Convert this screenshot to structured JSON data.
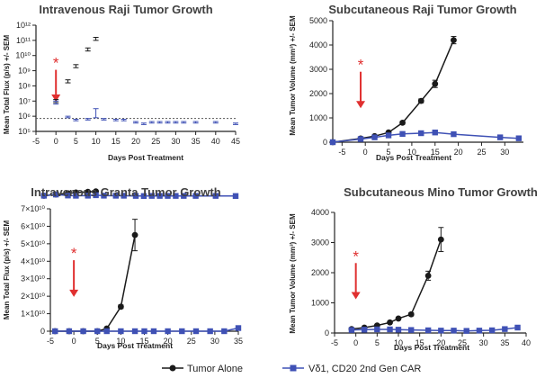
{
  "colors": {
    "tumor": "#1a1a1a",
    "car": "#3f51b5",
    "arrow": "#e03030",
    "axis": "#222222"
  },
  "legend": {
    "items": [
      {
        "label": "Tumor Alone",
        "marker": "circle",
        "color": "#1a1a1a"
      },
      {
        "label": "Vδ1, CD20 2nd Gen CAR",
        "marker": "square",
        "color": "#3f51b5"
      }
    ]
  },
  "chart_data": [
    {
      "id": "p1",
      "type": "line",
      "title": "Intravenous Raji Tumor Growth",
      "xlabel": "Days Post Treatment",
      "ylabel": "Mean Total Flux (p/s) +/- SEM",
      "y_scale": "log10",
      "xlim": [
        -5,
        45
      ],
      "ylim_exp": [
        5,
        12
      ],
      "x_ticks": [
        -5,
        0,
        5,
        10,
        15,
        20,
        25,
        30,
        35,
        40,
        45
      ],
      "y_ticks": [
        {
          "v": 5,
          "label": "10⁵"
        },
        {
          "v": 6,
          "label": "10⁶"
        },
        {
          "v": 7,
          "label": "10⁷"
        },
        {
          "v": 8,
          "label": "10⁸"
        },
        {
          "v": 9,
          "label": "10⁹"
        },
        {
          "v": 10,
          "label": "10¹⁰"
        },
        {
          "v": 11,
          "label": "10¹¹"
        },
        {
          "v": 12,
          "label": "10¹²"
        }
      ],
      "baseline": 5.85,
      "annotation": {
        "text": "*",
        "x": 0
      },
      "series": [
        {
          "name": "Tumor Alone",
          "marker": "circle",
          "x": [
            -3,
            0,
            3,
            5,
            8,
            10
          ],
          "y": [
            5.75,
            7.0,
            8.3,
            9.3,
            10.4,
            11.1
          ],
          "err": [
            0,
            0.1,
            0.1,
            0.1,
            0.1,
            0.1
          ]
        },
        {
          "name": "Vδ1, CD20 2nd Gen CAR",
          "marker": "square",
          "x": [
            -3,
            0,
            3,
            5,
            8,
            10,
            12,
            15,
            17,
            20,
            22,
            24,
            26,
            28,
            30,
            32,
            35,
            40,
            45
          ],
          "y": [
            5.75,
            6.9,
            5.95,
            5.75,
            5.8,
            6.2,
            5.8,
            5.75,
            5.75,
            5.6,
            5.5,
            5.6,
            5.6,
            5.6,
            5.6,
            5.6,
            5.6,
            5.6,
            5.5
          ],
          "err": [
            0,
            0.1,
            0.05,
            0.05,
            0.05,
            0.3,
            0.05,
            0.05,
            0.05,
            0.05,
            0.05,
            0.05,
            0.05,
            0.05,
            0.05,
            0.05,
            0.05,
            0.05,
            0.05
          ]
        }
      ]
    },
    {
      "id": "p2",
      "type": "line",
      "title": "Subcutaneous Raji Tumor Growth",
      "xlabel": "Days Post Treatment",
      "ylabel": "Mean Tumor Volume (mm³) +/- SEM",
      "xlim": [
        -7,
        34
      ],
      "ylim": [
        0,
        5000
      ],
      "x_ticks": [
        -5,
        0,
        5,
        10,
        15,
        20,
        25,
        30
      ],
      "y_ticks": [
        0,
        1000,
        2000,
        3000,
        4000,
        5000
      ],
      "annotation": {
        "text": "*",
        "x": -1
      },
      "series": [
        {
          "name": "Tumor Alone",
          "marker": "circle",
          "x": [
            -7,
            -1,
            2,
            5,
            8,
            12,
            15,
            19
          ],
          "y": [
            0,
            150,
            250,
            400,
            800,
            1700,
            2400,
            4200
          ],
          "err": [
            0,
            20,
            30,
            40,
            60,
            80,
            150,
            150
          ]
        },
        {
          "name": "Vδ1, CD20 2nd Gen CAR",
          "marker": "square",
          "x": [
            -7,
            -1,
            2,
            5,
            8,
            12,
            15,
            19,
            29,
            33
          ],
          "y": [
            0,
            130,
            200,
            280,
            340,
            370,
            400,
            330,
            200,
            160
          ],
          "err": [
            0,
            10,
            10,
            10,
            10,
            10,
            10,
            10,
            10,
            10
          ]
        }
      ]
    },
    {
      "id": "p3",
      "type": "line",
      "title": "Intravenous Granta Tumor Growth",
      "xlabel": "Days Post Treatment",
      "ylabel": "Mean Total Flux (p/s) +/- SEM",
      "xlim": [
        -5,
        35
      ],
      "ylim": [
        0,
        70000000000.0
      ],
      "x_ticks": [
        -5,
        0,
        5,
        10,
        15,
        20,
        25,
        30,
        35
      ],
      "y_ticks": [
        {
          "v": 0,
          "label": "0"
        },
        {
          "v": 10000000000.0,
          "label": "1×10¹⁰"
        },
        {
          "v": 20000000000.0,
          "label": "2×10¹⁰"
        },
        {
          "v": 30000000000.0,
          "label": "3×10¹⁰"
        },
        {
          "v": 40000000000.0,
          "label": "4×10¹⁰"
        },
        {
          "v": 50000000000.0,
          "label": "5×10¹⁰"
        },
        {
          "v": 60000000000.0,
          "label": "6×10¹⁰"
        },
        {
          "v": 70000000000.0,
          "label": "7×10¹⁰"
        }
      ],
      "annotation": {
        "text": "*",
        "x": 0
      },
      "series": [
        {
          "name": "Tumor Alone",
          "marker": "circle",
          "x": [
            -4,
            -1,
            2,
            5,
            7,
            10,
            13
          ],
          "y": [
            0,
            0,
            0,
            0,
            1500000000.0,
            14000000000.0,
            55000000000.0
          ],
          "err": [
            0,
            0,
            0,
            0,
            500000000.0,
            1000000000.0,
            9000000000.0
          ]
        },
        {
          "name": "Vδ1, CD20 2nd Gen CAR",
          "marker": "square",
          "x": [
            -4,
            -1,
            2,
            5,
            7,
            10,
            13,
            15,
            17,
            20,
            23,
            26,
            29,
            32,
            35
          ],
          "y": [
            0,
            0,
            0,
            0,
            0,
            0,
            0,
            0,
            0,
            0,
            0,
            0,
            0,
            0,
            1800000000.0
          ],
          "err": [
            0,
            0,
            0,
            0,
            0,
            0,
            0,
            0,
            0,
            0,
            0,
            0,
            0,
            0,
            500000000.0
          ]
        }
      ]
    },
    {
      "id": "p4",
      "type": "line",
      "title": "Subcutaneous Mino Tumor Growth",
      "xlabel": "Days Post Treatment",
      "ylabel": "Mean Tumor Volume (mm³) +/- SEM",
      "xlim": [
        -5,
        40
      ],
      "ylim": [
        0,
        4000
      ],
      "x_ticks": [
        -5,
        0,
        5,
        10,
        15,
        20,
        25,
        30,
        35,
        40
      ],
      "y_ticks": [
        0,
        1000,
        2000,
        3000,
        4000
      ],
      "annotation": {
        "text": "*",
        "x": 0
      },
      "series": [
        {
          "name": "Tumor Alone",
          "marker": "circle",
          "x": [
            -1,
            2,
            5,
            8,
            10,
            13,
            17,
            20
          ],
          "y": [
            130,
            180,
            250,
            350,
            480,
            620,
            1900,
            3100
          ],
          "err": [
            10,
            15,
            20,
            30,
            40,
            50,
            150,
            400
          ]
        },
        {
          "name": "Vδ1, CD20 2nd Gen CAR",
          "marker": "square",
          "x": [
            -1,
            2,
            5,
            8,
            10,
            13,
            17,
            20,
            23,
            26,
            29,
            32,
            35,
            38
          ],
          "y": [
            100,
            110,
            120,
            120,
            110,
            100,
            90,
            80,
            80,
            70,
            80,
            90,
            130,
            180
          ],
          "err": [
            5,
            5,
            5,
            5,
            5,
            5,
            5,
            5,
            5,
            5,
            5,
            5,
            10,
            10
          ]
        }
      ]
    }
  ]
}
